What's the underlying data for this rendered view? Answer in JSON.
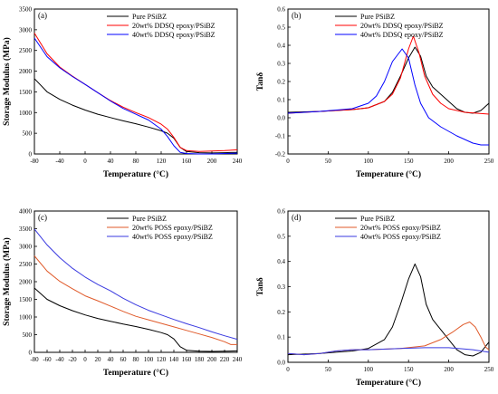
{
  "chart_data": [
    {
      "type": "line",
      "panel_label": "(a)",
      "xlabel": "Temperature (°C)",
      "ylabel": "Storage Modulus (MPa)",
      "xlim": [
        -80,
        240
      ],
      "ylim": [
        0,
        3500
      ],
      "xticks": [
        -80,
        -40,
        0,
        40,
        80,
        120,
        160,
        200,
        240
      ],
      "yticks": [
        0,
        500,
        1000,
        1500,
        2000,
        2500,
        3000,
        3500
      ],
      "legend_position": "top-center",
      "series": [
        {
          "name": "Pure PSiBZ",
          "color": "#000000",
          "points": [
            [
              -80,
              1820
            ],
            [
              -60,
              1500
            ],
            [
              -40,
              1320
            ],
            [
              -20,
              1180
            ],
            [
              0,
              1060
            ],
            [
              20,
              960
            ],
            [
              40,
              880
            ],
            [
              60,
              800
            ],
            [
              80,
              730
            ],
            [
              100,
              650
            ],
            [
              120,
              560
            ],
            [
              130,
              500
            ],
            [
              140,
              380
            ],
            [
              150,
              160
            ],
            [
              160,
              60
            ],
            [
              180,
              30
            ],
            [
              200,
              25
            ],
            [
              220,
              30
            ],
            [
              240,
              40
            ]
          ]
        },
        {
          "name": "20wt% DDSQ epoxy/PSiBZ",
          "color": "#ff0000",
          "points": [
            [
              -80,
              2920
            ],
            [
              -60,
              2420
            ],
            [
              -40,
              2100
            ],
            [
              -20,
              1880
            ],
            [
              0,
              1680
            ],
            [
              20,
              1480
            ],
            [
              40,
              1290
            ],
            [
              60,
              1130
            ],
            [
              80,
              1000
            ],
            [
              100,
              880
            ],
            [
              120,
              720
            ],
            [
              130,
              600
            ],
            [
              140,
              400
            ],
            [
              150,
              160
            ],
            [
              160,
              80
            ],
            [
              180,
              60
            ],
            [
              200,
              70
            ],
            [
              220,
              80
            ],
            [
              240,
              100
            ]
          ]
        },
        {
          "name": "40wt% DDSQ epoxy/PSiBZ",
          "color": "#0000ff",
          "points": [
            [
              -80,
              2800
            ],
            [
              -60,
              2350
            ],
            [
              -40,
              2080
            ],
            [
              -20,
              1870
            ],
            [
              0,
              1680
            ],
            [
              20,
              1480
            ],
            [
              40,
              1280
            ],
            [
              60,
              1100
            ],
            [
              80,
              960
            ],
            [
              100,
              820
            ],
            [
              120,
              600
            ],
            [
              130,
              420
            ],
            [
              140,
              200
            ],
            [
              150,
              40
            ],
            [
              160,
              10
            ],
            [
              180,
              0
            ],
            [
              200,
              0
            ],
            [
              220,
              10
            ],
            [
              240,
              20
            ]
          ]
        }
      ]
    },
    {
      "type": "line",
      "panel_label": "(b)",
      "xlabel": "Temperature (°C)",
      "ylabel": "Tanδ",
      "xlim": [
        0,
        250
      ],
      "ylim": [
        -0.2,
        0.6
      ],
      "xticks": [
        0,
        50,
        100,
        150,
        200,
        250
      ],
      "yticks": [
        -0.2,
        -0.1,
        0.0,
        0.1,
        0.2,
        0.3,
        0.4,
        0.5,
        0.6
      ],
      "legend_position": "top-center",
      "series": [
        {
          "name": "Pure PSiBZ",
          "color": "#000000",
          "points": [
            [
              0,
              0.03
            ],
            [
              40,
              0.035
            ],
            [
              80,
              0.045
            ],
            [
              100,
              0.055
            ],
            [
              120,
              0.09
            ],
            [
              130,
              0.14
            ],
            [
              140,
              0.23
            ],
            [
              150,
              0.33
            ],
            [
              158,
              0.39
            ],
            [
              165,
              0.34
            ],
            [
              172,
              0.23
            ],
            [
              180,
              0.17
            ],
            [
              190,
              0.13
            ],
            [
              200,
              0.09
            ],
            [
              210,
              0.05
            ],
            [
              220,
              0.03
            ],
            [
              230,
              0.025
            ],
            [
              240,
              0.04
            ],
            [
              250,
              0.08
            ]
          ]
        },
        {
          "name": "20wt% DDSQ epoxy/PSiBZ",
          "color": "#ff0000",
          "points": [
            [
              0,
              0.025
            ],
            [
              40,
              0.035
            ],
            [
              80,
              0.045
            ],
            [
              100,
              0.055
            ],
            [
              120,
              0.09
            ],
            [
              130,
              0.13
            ],
            [
              140,
              0.22
            ],
            [
              150,
              0.38
            ],
            [
              156,
              0.45
            ],
            [
              163,
              0.36
            ],
            [
              170,
              0.23
            ],
            [
              180,
              0.13
            ],
            [
              190,
              0.08
            ],
            [
              200,
              0.05
            ],
            [
              220,
              0.03
            ],
            [
              250,
              0.02
            ]
          ]
        },
        {
          "name": "40wt% DDSQ epoxy/PSiBZ",
          "color": "#0000ff",
          "points": [
            [
              0,
              0.025
            ],
            [
              40,
              0.035
            ],
            [
              80,
              0.05
            ],
            [
              100,
              0.08
            ],
            [
              110,
              0.12
            ],
            [
              120,
              0.2
            ],
            [
              130,
              0.31
            ],
            [
              142,
              0.38
            ],
            [
              150,
              0.33
            ],
            [
              158,
              0.18
            ],
            [
              165,
              0.08
            ],
            [
              175,
              0.0
            ],
            [
              190,
              -0.05
            ],
            [
              210,
              -0.1
            ],
            [
              230,
              -0.14
            ],
            [
              240,
              -0.15
            ],
            [
              250,
              -0.15
            ]
          ]
        }
      ]
    },
    {
      "type": "line",
      "panel_label": "(c)",
      "xlabel": "Temperature (°C)",
      "ylabel": "Storage Modulus (MPa)",
      "xlim": [
        -80,
        240
      ],
      "ylim": [
        0,
        4000
      ],
      "xticks": [
        -80,
        -60,
        -40,
        -20,
        0,
        20,
        40,
        60,
        80,
        100,
        120,
        140,
        160,
        180,
        200,
        220,
        240
      ],
      "yticks": [
        0,
        500,
        1000,
        1500,
        2000,
        2500,
        3000,
        3500,
        4000
      ],
      "legend_position": "top-center",
      "series": [
        {
          "name": "Pure PSiBZ",
          "color": "#000000",
          "points": [
            [
              -80,
              1820
            ],
            [
              -60,
              1500
            ],
            [
              -40,
              1320
            ],
            [
              -20,
              1180
            ],
            [
              0,
              1060
            ],
            [
              20,
              960
            ],
            [
              40,
              880
            ],
            [
              60,
              800
            ],
            [
              80,
              730
            ],
            [
              100,
              650
            ],
            [
              120,
              560
            ],
            [
              130,
              500
            ],
            [
              140,
              380
            ],
            [
              150,
              160
            ],
            [
              160,
              60
            ],
            [
              180,
              30
            ],
            [
              200,
              25
            ],
            [
              220,
              30
            ],
            [
              240,
              40
            ]
          ]
        },
        {
          "name": "20wt% POSS epoxy/PSiBZ",
          "color": "#e05a2a",
          "points": [
            [
              -80,
              2730
            ],
            [
              -60,
              2300
            ],
            [
              -40,
              2010
            ],
            [
              -20,
              1800
            ],
            [
              0,
              1600
            ],
            [
              20,
              1460
            ],
            [
              40,
              1310
            ],
            [
              60,
              1160
            ],
            [
              80,
              1020
            ],
            [
              100,
              920
            ],
            [
              120,
              820
            ],
            [
              140,
              720
            ],
            [
              160,
              620
            ],
            [
              180,
              520
            ],
            [
              200,
              420
            ],
            [
              220,
              300
            ],
            [
              230,
              220
            ],
            [
              240,
              220
            ]
          ]
        },
        {
          "name": "40wt% POSS epoxy/PSiBZ",
          "color": "#3a3ae0",
          "points": [
            [
              -80,
              3490
            ],
            [
              -60,
              3040
            ],
            [
              -40,
              2680
            ],
            [
              -20,
              2380
            ],
            [
              0,
              2130
            ],
            [
              20,
              1920
            ],
            [
              40,
              1740
            ],
            [
              60,
              1530
            ],
            [
              80,
              1350
            ],
            [
              100,
              1190
            ],
            [
              120,
              1060
            ],
            [
              140,
              930
            ],
            [
              160,
              810
            ],
            [
              180,
              700
            ],
            [
              200,
              580
            ],
            [
              220,
              470
            ],
            [
              240,
              370
            ]
          ]
        }
      ]
    },
    {
      "type": "line",
      "panel_label": "(d)",
      "xlabel": "Temperature (°C)",
      "ylabel": "Tanδ",
      "xlim": [
        0,
        250
      ],
      "ylim": [
        0.0,
        0.6
      ],
      "xticks": [
        0,
        50,
        100,
        150,
        200,
        250
      ],
      "yticks": [
        0.0,
        0.1,
        0.2,
        0.3,
        0.4,
        0.5,
        0.6
      ],
      "legend_position": "top-center",
      "series": [
        {
          "name": "Pure PSiBZ",
          "color": "#000000",
          "points": [
            [
              0,
              0.03
            ],
            [
              40,
              0.035
            ],
            [
              80,
              0.045
            ],
            [
              100,
              0.055
            ],
            [
              120,
              0.09
            ],
            [
              130,
              0.14
            ],
            [
              140,
              0.23
            ],
            [
              150,
              0.33
            ],
            [
              158,
              0.39
            ],
            [
              165,
              0.34
            ],
            [
              172,
              0.23
            ],
            [
              180,
              0.17
            ],
            [
              190,
              0.13
            ],
            [
              200,
              0.09
            ],
            [
              210,
              0.05
            ],
            [
              220,
              0.03
            ],
            [
              230,
              0.025
            ],
            [
              240,
              0.04
            ],
            [
              250,
              0.08
            ]
          ]
        },
        {
          "name": "20wt% POSS epoxy/PSiBZ",
          "color": "#e05a2a",
          "points": [
            [
              0,
              0.035
            ],
            [
              20,
              0.03
            ],
            [
              40,
              0.035
            ],
            [
              60,
              0.045
            ],
            [
              80,
              0.05
            ],
            [
              100,
              0.05
            ],
            [
              140,
              0.055
            ],
            [
              170,
              0.065
            ],
            [
              190,
              0.09
            ],
            [
              205,
              0.12
            ],
            [
              218,
              0.15
            ],
            [
              226,
              0.16
            ],
            [
              233,
              0.14
            ],
            [
              240,
              0.1
            ],
            [
              246,
              0.06
            ],
            [
              250,
              0.05
            ]
          ]
        },
        {
          "name": "40wt% POSS epoxy/PSiBZ",
          "color": "#3a3ae0",
          "points": [
            [
              0,
              0.035
            ],
            [
              20,
              0.03
            ],
            [
              40,
              0.035
            ],
            [
              60,
              0.045
            ],
            [
              80,
              0.05
            ],
            [
              100,
              0.05
            ],
            [
              140,
              0.055
            ],
            [
              170,
              0.058
            ],
            [
              200,
              0.058
            ],
            [
              230,
              0.05
            ],
            [
              250,
              0.04
            ]
          ]
        }
      ]
    }
  ]
}
